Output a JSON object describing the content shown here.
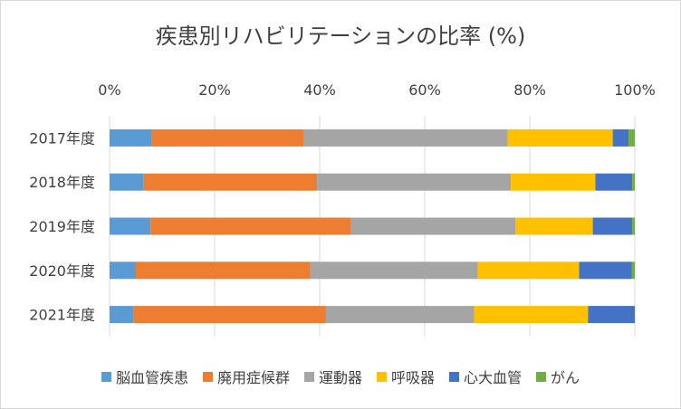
{
  "chart_data": {
    "type": "bar",
    "orientation": "horizontal",
    "stacked": "percent",
    "title": "疾患別リハビリテーションの比率 (%)",
    "categories": [
      "2017年度",
      "2018年度",
      "2019年度",
      "2020年度",
      "2021年度"
    ],
    "x_ticks": [
      "0%",
      "20%",
      "40%",
      "60%",
      "80%",
      "100%"
    ],
    "xlim": [
      0,
      100
    ],
    "x_axis_position": "top",
    "grid": "vertical",
    "legend_position": "bottom",
    "series": [
      {
        "name": "脳血管疾患",
        "color": "#5b9bd5",
        "values": [
          8.0,
          6.5,
          7.8,
          5.0,
          4.6
        ]
      },
      {
        "name": "廃用症候群",
        "color": "#ed7d31",
        "values": [
          29.0,
          33.0,
          38.2,
          33.2,
          36.6
        ]
      },
      {
        "name": "運動器",
        "color": "#a5a5a5",
        "values": [
          38.8,
          36.9,
          31.3,
          31.9,
          28.2
        ]
      },
      {
        "name": "呼吸器",
        "color": "#ffc000",
        "values": [
          20.0,
          16.1,
          14.7,
          19.3,
          21.7
        ]
      },
      {
        "name": "心大血管",
        "color": "#4472c4",
        "values": [
          3.0,
          7.0,
          7.5,
          10.0,
          8.9
        ]
      },
      {
        "name": "がん",
        "color": "#70ad47",
        "values": [
          1.2,
          0.5,
          0.5,
          0.6,
          0.0
        ]
      }
    ]
  }
}
